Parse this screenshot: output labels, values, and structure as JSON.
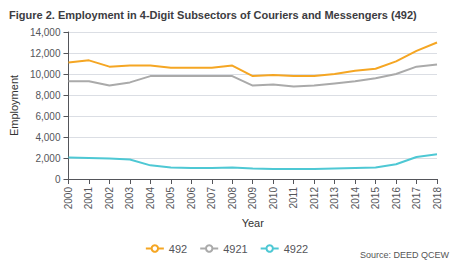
{
  "chart_data": {
    "type": "line",
    "title": "Figure 2. Employment in 4-Digit Subsectors of Couriers and Messengers (492)",
    "xlabel": "Year",
    "ylabel": "Employment",
    "annotations": [
      "Source: DEED QCEW"
    ],
    "x": [
      2000,
      2001,
      2002,
      2003,
      2004,
      2005,
      2006,
      2007,
      2008,
      2009,
      2010,
      2011,
      2012,
      2013,
      2014,
      2015,
      2016,
      2017,
      2018
    ],
    "series": [
      {
        "name": "492",
        "color": "#f5a623",
        "values": [
          11100,
          11300,
          10700,
          10800,
          10800,
          10600,
          10600,
          10600,
          10800,
          9800,
          9900,
          9800,
          9800,
          10000,
          10300,
          10500,
          11200,
          12200,
          13000
        ]
      },
      {
        "name": "4921",
        "color": "#aaaaaa",
        "values": [
          9300,
          9300,
          8900,
          9200,
          9800,
          9800,
          9800,
          9800,
          9800,
          8900,
          9000,
          8800,
          8900,
          9100,
          9300,
          9600,
          10000,
          10700,
          10900
        ]
      },
      {
        "name": "4922",
        "color": "#4ec8d4",
        "values": [
          2050,
          2000,
          1950,
          1850,
          1300,
          1100,
          1050,
          1050,
          1100,
          1000,
          950,
          950,
          950,
          1000,
          1050,
          1100,
          1400,
          2100,
          2350
        ]
      }
    ],
    "xlim": [
      2000,
      2018
    ],
    "xticks": [
      2000,
      2001,
      2002,
      2003,
      2004,
      2005,
      2006,
      2007,
      2008,
      2009,
      2010,
      2011,
      2012,
      2013,
      2014,
      2015,
      2016,
      2017,
      2018
    ],
    "ylim": [
      0,
      14000
    ],
    "yticks": [
      0,
      {
        "value": 2000,
        "label": "2,000"
      },
      {
        "value": 4000,
        "label": "4,000"
      },
      {
        "value": 6000,
        "label": "6,000"
      },
      {
        "value": 8000,
        "label": "8,000"
      },
      {
        "value": 10000,
        "label": "10,000"
      },
      {
        "value": 12000,
        "label": "12,000"
      },
      {
        "value": 14000,
        "label": "14,000"
      }
    ],
    "grid": true,
    "legend": "bottom"
  }
}
